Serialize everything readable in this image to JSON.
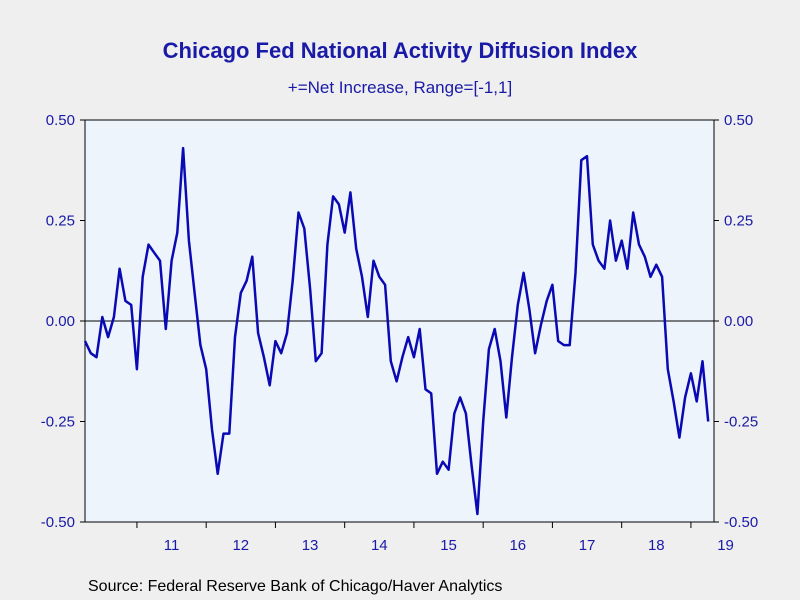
{
  "title": "Chicago Fed National Activity Diffusion Index",
  "subtitle": "+=Net Increase, Range=[-1,1]",
  "source": "Source:  Federal Reserve Bank of Chicago/Haver Analytics",
  "colors": {
    "line": "#0a0ab4",
    "text": "#1a1aa8",
    "plot_bg": "#eef4fc",
    "background": "#efefef"
  },
  "chart_data": {
    "type": "line",
    "title": "Chicago Fed National Activity Diffusion Index",
    "subtitle": "+=Net Increase, Range=[-1,1]",
    "xlabel": "",
    "ylabel": "",
    "ylim": [
      -0.5,
      0.5
    ],
    "xlim": [
      "2010-04",
      "2019-05"
    ],
    "y_ticks": [
      "0.50",
      "0.25",
      "0.00",
      "-0.25",
      "-0.50"
    ],
    "y_tick_values": [
      0.5,
      0.25,
      0.0,
      -0.25,
      -0.5
    ],
    "x_tick_labels": [
      "11",
      "12",
      "13",
      "14",
      "15",
      "16",
      "17",
      "18",
      "19"
    ],
    "x_tick_years": [
      2011,
      2012,
      2013,
      2014,
      2015,
      2016,
      2017,
      2018,
      2019
    ],
    "grid": false,
    "zero_line": true,
    "frequency": "monthly",
    "series": [
      {
        "start": "2010-04",
        "values": [
          -0.05,
          -0.08,
          -0.09,
          0.01,
          -0.04,
          0.01,
          0.13,
          0.05,
          0.04,
          -0.12,
          0.11,
          0.19,
          0.17,
          0.15,
          -0.02,
          0.15,
          0.22,
          0.43,
          0.2,
          0.07,
          -0.06,
          -0.12,
          -0.27,
          -0.38,
          -0.28,
          -0.28,
          -0.04,
          0.07,
          0.1,
          0.16,
          -0.03,
          -0.09,
          -0.16,
          -0.05,
          -0.08,
          -0.03,
          0.1,
          0.27,
          0.23,
          0.08,
          -0.1,
          -0.08,
          0.19,
          0.31,
          0.29,
          0.22,
          0.32,
          0.18,
          0.11,
          0.01,
          0.15,
          0.11,
          0.09,
          -0.1,
          -0.15,
          -0.09,
          -0.04,
          -0.09,
          -0.02,
          -0.17,
          -0.18,
          -0.38,
          -0.35,
          -0.37,
          -0.23,
          -0.19,
          -0.23,
          -0.36,
          -0.48,
          -0.25,
          -0.07,
          -0.02,
          -0.1,
          -0.24,
          -0.09,
          0.04,
          0.12,
          0.03,
          -0.08,
          -0.01,
          0.05,
          0.09,
          -0.05,
          -0.06,
          -0.06,
          0.12,
          0.4,
          0.41,
          0.19,
          0.15,
          0.13,
          0.25,
          0.15,
          0.2,
          0.13,
          0.27,
          0.19,
          0.16,
          0.11,
          0.14,
          0.11,
          -0.12,
          -0.2,
          -0.29,
          -0.19,
          -0.13,
          -0.2,
          -0.1,
          -0.25
        ]
      }
    ]
  }
}
